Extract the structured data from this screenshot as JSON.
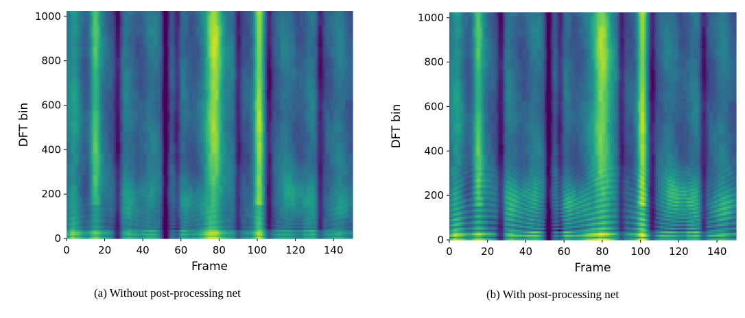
{
  "chart_data": [
    {
      "type": "heatmap",
      "caption": "(a)  Without post-processing net",
      "xlabel": "Frame",
      "ylabel": "DFT bin",
      "xlim": [
        0,
        150
      ],
      "ylim": [
        0,
        1024
      ],
      "xticks": [
        0,
        20,
        40,
        60,
        80,
        100,
        120,
        140
      ],
      "yticks": [
        0,
        200,
        400,
        600,
        800,
        1000
      ],
      "colormap": "viridis",
      "harmonics_visible": "weak",
      "vertical_bright_bands_at_frame": [
        15,
        78,
        101
      ],
      "dark_gaps_at_frame": [
        27,
        52,
        58,
        90,
        106,
        133
      ]
    },
    {
      "type": "heatmap",
      "caption": "(b)  With post-processing net",
      "xlabel": "Frame",
      "ylabel": "DFT bin",
      "xlim": [
        0,
        150
      ],
      "ylim": [
        0,
        1024
      ],
      "xticks": [
        0,
        20,
        40,
        60,
        80,
        100,
        120,
        140
      ],
      "yticks": [
        0,
        200,
        400,
        600,
        800,
        1000
      ],
      "colormap": "viridis",
      "harmonics_visible": "strong",
      "vertical_bright_bands_at_frame": [
        15,
        80,
        101
      ],
      "dark_gaps_at_frame": [
        27,
        52,
        58,
        90,
        106,
        133
      ]
    }
  ],
  "colors": {
    "viridis_low": "#440154",
    "viridis_mid": "#21918c",
    "viridis_high": "#fde725"
  }
}
